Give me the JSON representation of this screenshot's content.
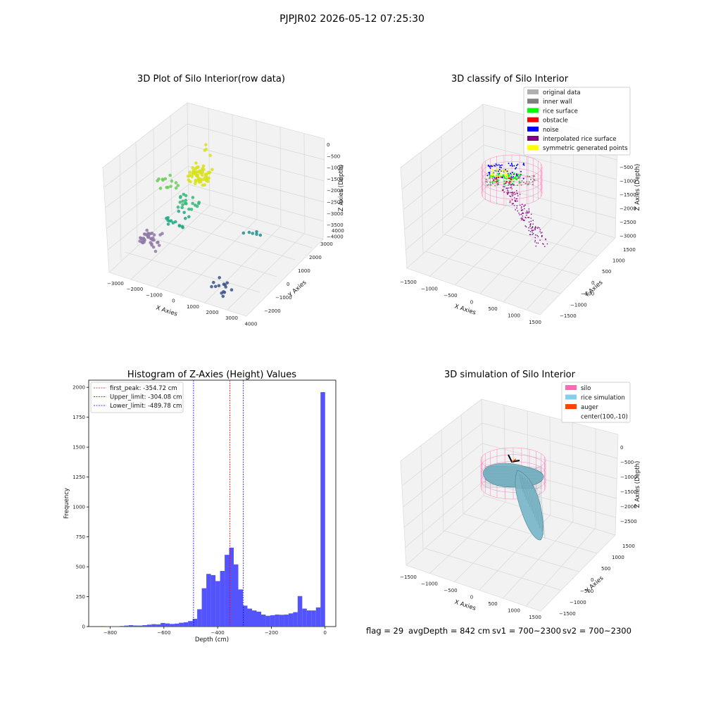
{
  "figure": {
    "suptitle": "PJPJR02 2026-05-12 07:25:30",
    "footer": {
      "flag": "flag = 29",
      "avg_depth": "avgDepth = 842 cm",
      "sv1": "sv1 = 700~2300",
      "sv2": "sv2 = 700~2300"
    }
  },
  "chart_data": [
    {
      "type": "scatter",
      "title": "3D Plot of Silo Interior(row data)",
      "xlabel": "X Axies",
      "ylabel": "Y Axies",
      "zlabel": "Z Axies (Depth)",
      "x_ticks": [
        "−3000",
        "−2000",
        "−1000",
        "0",
        "1000",
        "2000",
        "3000",
        "4000"
      ],
      "y_ticks": [
        "−2000",
        "−1000",
        "0",
        "1000",
        "2000",
        "3000",
        "4000"
      ],
      "z_ticks": [
        "0",
        "−500",
        "−1000",
        "−1500",
        "−2000",
        "−2500",
        "−3000",
        "−3500",
        "−4000"
      ],
      "xlim": [
        -3000,
        4000
      ],
      "ylim": [
        -2000,
        4000
      ],
      "zlim": [
        -4000,
        0
      ],
      "colormap": [
        "#440154",
        "#3b528b",
        "#21918c",
        "#5ec962",
        "#fde725"
      ],
      "clusters": [
        {
          "x": -300,
          "y": 1600,
          "z": -100,
          "count": 4,
          "color": "#d9e021"
        },
        {
          "x": -400,
          "y": 1000,
          "z": -800,
          "count": 60,
          "color": "#d8e219"
        },
        {
          "x": -2100,
          "y": 1100,
          "z": -1500,
          "count": 14,
          "color": "#6ccd5a"
        },
        {
          "x": -800,
          "y": 700,
          "z": -1900,
          "count": 20,
          "color": "#35b779"
        },
        {
          "x": -1300,
          "y": 600,
          "z": -2700,
          "count": 16,
          "color": "#22a884"
        },
        {
          "x": 2300,
          "y": 900,
          "z": -2300,
          "count": 6,
          "color": "#21918c"
        },
        {
          "x": -2000,
          "y": -300,
          "z": -3200,
          "count": 40,
          "color": "#8f7aa7"
        },
        {
          "x": 2300,
          "y": -1500,
          "z": -3500,
          "count": 14,
          "color": "#3b528b"
        }
      ]
    },
    {
      "type": "scatter",
      "title": "3D classify of Silo Interior",
      "xlabel": "X Axies",
      "ylabel": "Y Axies",
      "zlabel": "Z Axies (Depth)",
      "x_ticks": [
        "−1500",
        "−1000",
        "−500",
        "0",
        "500",
        "1000",
        "1500"
      ],
      "y_ticks": [
        "−1500",
        "−1000",
        "−500",
        "0",
        "500",
        "1000",
        "1500"
      ],
      "z_ticks": [
        "−500",
        "−1000",
        "−1500",
        "−2000",
        "−2500",
        "−3000"
      ],
      "xlim": [
        -1500,
        1500
      ],
      "ylim": [
        -1500,
        1500
      ],
      "zlim": [
        -3000,
        -500
      ],
      "legend": [
        {
          "label": "original data",
          "color": "#b0b0b0"
        },
        {
          "label": "inner wall",
          "color": "#808080"
        },
        {
          "label": "rice surface",
          "color": "#00ff00"
        },
        {
          "label": "obstacle",
          "color": "#ff0000"
        },
        {
          "label": "noise",
          "color": "#0000ff"
        },
        {
          "label": "interpolated rice surface",
          "color": "#800080"
        },
        {
          "label": "symmetric generated points",
          "color": "#ffff00"
        }
      ]
    },
    {
      "type": "bar",
      "title": "Histogram of Z-Axies (Height) Values",
      "xlabel": "Depth (cm)",
      "ylabel": "Frequency",
      "xlim": [
        -880,
        40
      ],
      "ylim": [
        0,
        2060
      ],
      "x_ticks": [
        -800,
        -600,
        -400,
        -200,
        0
      ],
      "x_tick_labels": [
        "−800",
        "−600",
        "−400",
        "−200",
        "0"
      ],
      "y_ticks": [
        0,
        250,
        500,
        750,
        1000,
        1250,
        1500,
        1750,
        2000
      ],
      "bar_color": "#4b4bff",
      "bin_width": 17,
      "bins": [
        {
          "x": -816,
          "v": 3
        },
        {
          "x": -799,
          "v": 3
        },
        {
          "x": -782,
          "v": 3
        },
        {
          "x": -765,
          "v": 5
        },
        {
          "x": -748,
          "v": 8
        },
        {
          "x": -731,
          "v": 12
        },
        {
          "x": -714,
          "v": 9
        },
        {
          "x": -697,
          "v": 8
        },
        {
          "x": -680,
          "v": 12
        },
        {
          "x": -663,
          "v": 16
        },
        {
          "x": -646,
          "v": 20
        },
        {
          "x": -629,
          "v": 18
        },
        {
          "x": -612,
          "v": 30
        },
        {
          "x": -595,
          "v": 26
        },
        {
          "x": -578,
          "v": 22
        },
        {
          "x": -561,
          "v": 25
        },
        {
          "x": -544,
          "v": 32
        },
        {
          "x": -527,
          "v": 36
        },
        {
          "x": -510,
          "v": 46
        },
        {
          "x": -493,
          "v": 65
        },
        {
          "x": -476,
          "v": 145
        },
        {
          "x": -459,
          "v": 320
        },
        {
          "x": -442,
          "v": 440
        },
        {
          "x": -425,
          "v": 430
        },
        {
          "x": -408,
          "v": 380
        },
        {
          "x": -391,
          "v": 465
        },
        {
          "x": -374,
          "v": 600
        },
        {
          "x": -357,
          "v": 660
        },
        {
          "x": -340,
          "v": 520
        },
        {
          "x": -323,
          "v": 310
        },
        {
          "x": -306,
          "v": 175
        },
        {
          "x": -289,
          "v": 150
        },
        {
          "x": -272,
          "v": 135
        },
        {
          "x": -255,
          "v": 125
        },
        {
          "x": -238,
          "v": 100
        },
        {
          "x": -221,
          "v": 90
        },
        {
          "x": -204,
          "v": 95
        },
        {
          "x": -187,
          "v": 100
        },
        {
          "x": -170,
          "v": 98
        },
        {
          "x": -153,
          "v": 100
        },
        {
          "x": -136,
          "v": 110
        },
        {
          "x": -119,
          "v": 120
        },
        {
          "x": -102,
          "v": 255
        },
        {
          "x": -85,
          "v": 150
        },
        {
          "x": -68,
          "v": 135
        },
        {
          "x": -51,
          "v": 135
        },
        {
          "x": -34,
          "v": 160
        },
        {
          "x": -17,
          "v": 1960
        }
      ],
      "lines": [
        {
          "label": "first_peak: -354.72 cm",
          "x": -354.72,
          "color": "#ff0000"
        },
        {
          "label": "Upper_limit: -304.08 cm",
          "x": -304.08,
          "color": "#0000ff"
        },
        {
          "label": "Lower_limit: -489.78 cm",
          "x": -489.78,
          "color": "#0000ff"
        }
      ]
    },
    {
      "type": "scatter",
      "title": "3D simulation of Silo Interior",
      "xlabel": "X Axies",
      "ylabel": "Y Axies",
      "zlabel": "Z Axies (Depth)",
      "x_ticks": [
        "−1500",
        "−1000",
        "−500",
        "0",
        "500",
        "1000",
        "1500"
      ],
      "y_ticks": [
        "−1500",
        "−1000",
        "−500",
        "0",
        "500",
        "1000",
        "1500"
      ],
      "z_ticks": [
        "0",
        "−500",
        "−1000",
        "−1500",
        "−2000",
        "−2500"
      ],
      "xlim": [
        -1500,
        1500
      ],
      "ylim": [
        -1500,
        1500
      ],
      "zlim": [
        -2500,
        0
      ],
      "legend": [
        {
          "label": "silo",
          "color": "#ff69b4"
        },
        {
          "label": "rice simulation",
          "color": "#87ceeb"
        },
        {
          "label": "auger",
          "color": "#ff4500"
        },
        {
          "label": "center(100,-10)",
          "color": ""
        }
      ]
    }
  ]
}
